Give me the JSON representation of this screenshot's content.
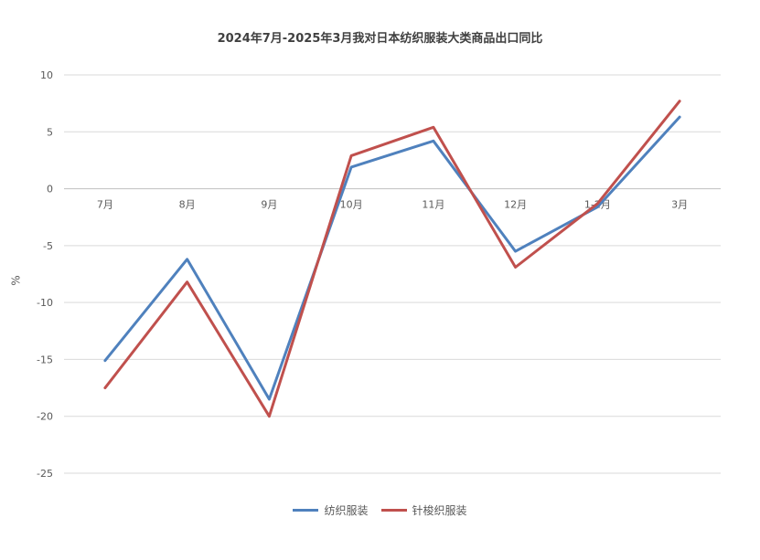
{
  "chart_data": {
    "type": "line",
    "title": "2024年7月-2025年3月我对日本纺织服装大类商品出口同比",
    "ylabel": "%",
    "xlabel": "",
    "categories": [
      "7月",
      "8月",
      "9月",
      "10月",
      "11月",
      "12月",
      "1-2月",
      "3月"
    ],
    "yticks": [
      10,
      5,
      0,
      -5,
      -10,
      -15,
      -20,
      -25
    ],
    "ylim": [
      -25,
      10
    ],
    "grid": true,
    "legend_position": "bottom",
    "series": [
      {
        "name": "纺织服装",
        "color": "#4f81bd",
        "values": [
          -15.1,
          -6.2,
          -18.5,
          1.9,
          4.2,
          -5.5,
          -1.6,
          6.3
        ]
      },
      {
        "name": "针梭织服装",
        "color": "#c0504d",
        "values": [
          -17.5,
          -8.2,
          -20.0,
          2.9,
          5.4,
          -6.9,
          -1.3,
          7.7
        ]
      }
    ]
  }
}
